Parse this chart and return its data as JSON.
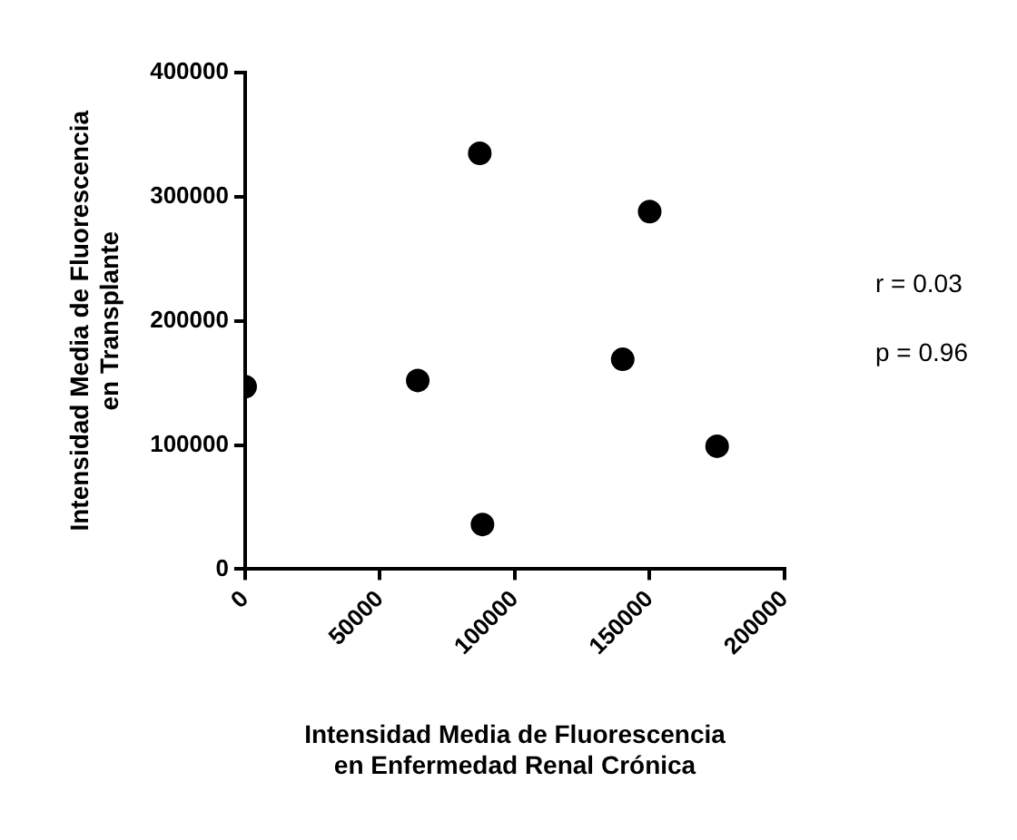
{
  "chart_data": {
    "type": "scatter",
    "xlabel": "Intensidad Media de Fluorescencia\nen Enfermedad Renal Crónica",
    "ylabel": "Intensidad Media de Fluorescencia\nen Transplante",
    "x": [
      0,
      64000,
      87000,
      88000,
      150000,
      140000,
      175000
    ],
    "series": [
      {
        "color": "#000000",
        "values": [
          147000,
          152000,
          335000,
          36000,
          288000,
          169000,
          99000
        ]
      }
    ],
    "xlim": [
      0,
      200000
    ],
    "xticks": [
      0,
      50000,
      100000,
      150000,
      200000
    ],
    "ylim": [
      0,
      400000
    ],
    "yticks": [
      0,
      100000,
      200000,
      300000,
      400000
    ],
    "grid": false,
    "legend": false,
    "marker": "circle",
    "annotations": [
      "r = 0.03",
      "p = 0.96"
    ]
  }
}
